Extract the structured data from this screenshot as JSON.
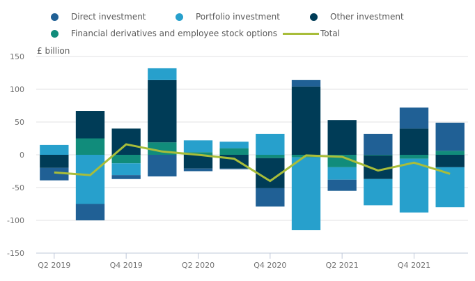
{
  "chart_data": {
    "type": "bar",
    "stacked": true,
    "title": "",
    "ylabel": "£ billion",
    "xlabel": "",
    "ylim": [
      -150,
      150
    ],
    "yticks": [
      150,
      100,
      50,
      0,
      -50,
      -100,
      -150
    ],
    "grid": true,
    "legend_position": "top",
    "categories": [
      "Q2 2019",
      "Q3 2019",
      "Q4 2019",
      "Q1 2020",
      "Q2 2020",
      "Q3 2020",
      "Q4 2020",
      "Q1 2021",
      "Q2 2021",
      "Q3 2021",
      "Q4 2021",
      "Q1 2022"
    ],
    "xtick_labels": [
      "Q2 2019",
      "",
      "Q4 2019",
      "",
      "Q2 2020",
      "",
      "Q4 2020",
      "",
      "Q2 2021",
      "",
      "Q4 2021",
      ""
    ],
    "series": [
      {
        "name": "Financial derivatives and employee stock options",
        "key": "derivatives",
        "type": "bar",
        "color": "#118c7b",
        "values": [
          0,
          25,
          -13,
          19,
          4,
          10,
          -5,
          -4,
          -19,
          -1,
          -6,
          6
        ]
      },
      {
        "name": "Other investment",
        "key": "other",
        "type": "bar",
        "color": "#003c57",
        "values": [
          -20,
          42,
          40,
          95,
          -21,
          -21,
          -46,
          104,
          53,
          -36,
          40,
          -19
        ]
      },
      {
        "name": "Portfolio investment",
        "key": "portfolio",
        "type": "bar",
        "color": "#27a0cc",
        "values": [
          15,
          -75,
          -18,
          18,
          18,
          10,
          32,
          -111,
          -19,
          -40,
          -82,
          -61
        ]
      },
      {
        "name": "Direct investment",
        "key": "direct",
        "type": "bar",
        "color": "#206095",
        "values": [
          -19,
          -25,
          -6,
          -33,
          -4,
          -1,
          -28,
          10,
          -17,
          32,
          32,
          43
        ]
      },
      {
        "name": "Total",
        "key": "total",
        "type": "line",
        "color": "#a8bd3a",
        "values": [
          -27,
          -31,
          16,
          5,
          0,
          -6,
          -40,
          -1,
          -3,
          -24,
          -12,
          -29
        ]
      }
    ]
  },
  "legend": {
    "items": [
      {
        "label": "Direct investment",
        "color": "#206095",
        "shape": "dot"
      },
      {
        "label": "Portfolio investment",
        "color": "#27a0cc",
        "shape": "dot"
      },
      {
        "label": "Other investment",
        "color": "#003c57",
        "shape": "dot"
      },
      {
        "label": "Financial derivatives and employee stock options",
        "color": "#118c7b",
        "shape": "dot"
      },
      {
        "label": "Total",
        "color": "#a8bd3a",
        "shape": "line"
      }
    ]
  }
}
